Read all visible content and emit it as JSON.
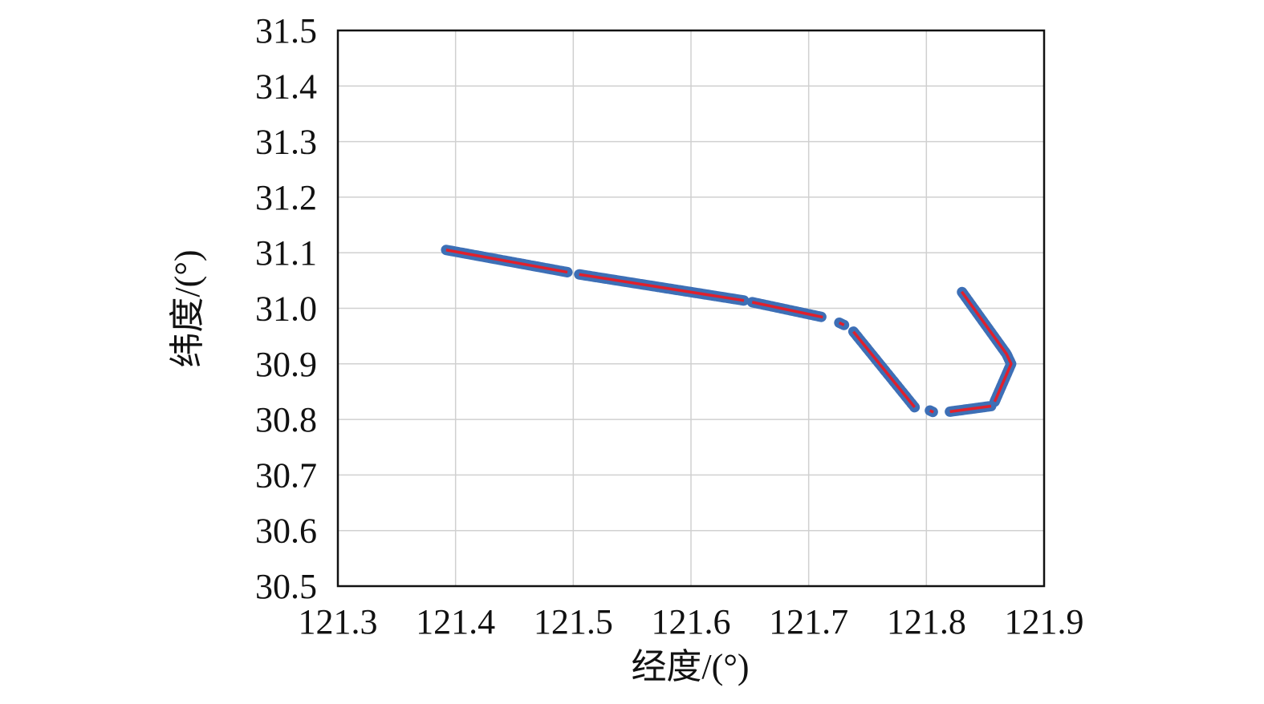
{
  "chart_data": {
    "type": "line",
    "xlabel": "经度/(°)",
    "ylabel": "纬度/(°)",
    "x": [
      121.392,
      121.495,
      null,
      121.505,
      121.645,
      null,
      121.652,
      121.712,
      null,
      121.726,
      121.73,
      null,
      121.738,
      121.79,
      null,
      121.803,
      121.806,
      null,
      121.82,
      121.855,
      null,
      121.858,
      121.872,
      121.868,
      121.83
    ],
    "series": [
      {
        "marker_color": "#3d6fb6",
        "color": "#e0202c",
        "values": [
          31.105,
          31.065,
          null,
          31.061,
          31.014,
          null,
          31.011,
          30.984,
          null,
          30.974,
          30.97,
          null,
          30.958,
          30.822,
          null,
          30.816,
          30.813,
          null,
          30.814,
          30.824,
          null,
          30.832,
          30.9,
          30.918,
          31.03
        ]
      }
    ],
    "xlim": [
      121.3,
      121.9
    ],
    "xticks": [
      121.3,
      121.4,
      121.5,
      121.6,
      121.7,
      121.8,
      121.9
    ],
    "ylim": [
      30.5,
      31.5
    ],
    "yticks": [
      30.5,
      30.6,
      30.7,
      30.8,
      30.9,
      {
        "value": 31,
        "label": "31.0"
      },
      31.1,
      31.2,
      31.3,
      31.4,
      31.5
    ],
    "grid": true
  }
}
